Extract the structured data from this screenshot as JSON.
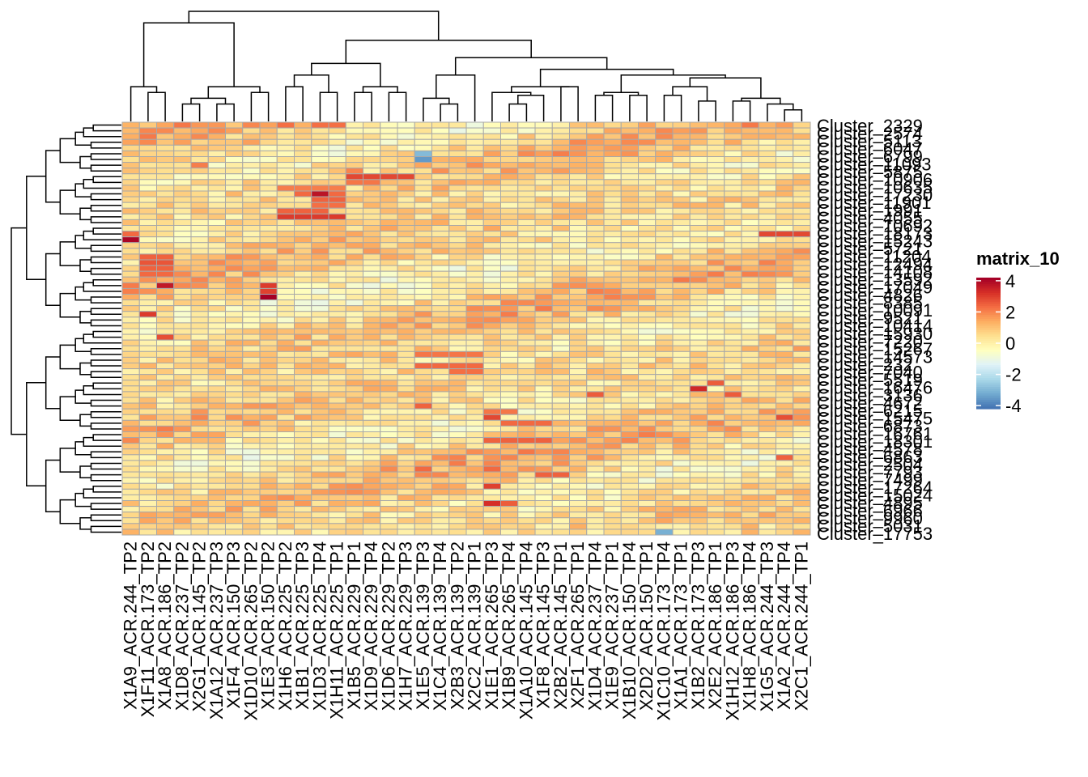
{
  "chart_data": {
    "type": "heatmap",
    "title": "",
    "legend": {
      "title": "matrix_10",
      "ticks": [
        4,
        2,
        0,
        -2,
        -4
      ],
      "range": [
        -4.2,
        4.2
      ],
      "colors": [
        "#4575b4",
        "#74add1",
        "#abd9e9",
        "#e0f3f8",
        "#ffffbf",
        "#fee090",
        "#fdae61",
        "#f46d43",
        "#d73027",
        "#a50026"
      ],
      "placement": "right"
    },
    "columns": [
      "X1A9_ACR.244_TP2",
      "X1F11_ACR.173_TP2",
      "X1A8_ACR.186_TP2",
      "X1D8_ACR.237_TP2",
      "X2G1_ACR.145_TP2",
      "X1A12_ACR.237_TP3",
      "X1F4_ACR.150_TP3",
      "X1D10_ACR.265_TP2",
      "X1E3_ACR.150_TP2",
      "X1H6_ACR.225_TP2",
      "X1B1_ACR.225_TP3",
      "X1D3_ACR.225_TP4",
      "X1H11_ACR.225_TP1",
      "X1B5_ACR.229_TP1",
      "X1D9_ACR.229_TP4",
      "X1D6_ACR.229_TP2",
      "X1H7_ACR.229_TP3",
      "X1E5_ACR.139_TP3",
      "X1C4_ACR.139_TP4",
      "X2B3_ACR.139_TP2",
      "X2C2_ACR.139_TP1",
      "X1E1_ACR.265_TP3",
      "X1B9_ACR.265_TP4",
      "X1A10_ACR.145_TP4",
      "X1F8_ACR.145_TP3",
      "X2B2_ACR.145_TP1",
      "X2F1_ACR.265_TP1",
      "X1D4_ACR.237_TP4",
      "X1E9_ACR.237_TP1",
      "X1B10_ACR.150_TP4",
      "X2D2_ACR.150_TP1",
      "X1C10_ACR.173_TP4",
      "X1A1_ACR.173_TP1",
      "X1B2_ACR.173_TP3",
      "X2E2_ACR.186_TP1",
      "X1H12_ACR.186_TP3",
      "X1H8_ACR.186_TP4",
      "X1G5_ACR.244_TP3",
      "X1A2_ACR.244_TP4",
      "X2C1_ACR.244_TP1"
    ],
    "rows": [
      "Cluster_2329",
      "Cluster_2574",
      "Cluster_5113",
      "Cluster_6047",
      "Cluster_6799",
      "Cluster_11093",
      "Cluster_5875",
      "Cluster_10960",
      "Cluster_10906",
      "Cluster_11036",
      "Cluster_10635",
      "Cluster_7429",
      "Cluster_17230",
      "Cluster_11901",
      "Cluster_1991",
      "Cluster_4055",
      "Cluster_10692",
      "Cluster_18173",
      "Cluster_15243",
      "Cluster_5721",
      "Cluster_11204",
      "Cluster_12494",
      "Cluster_14108",
      "Cluster_13592",
      "Cluster_17049",
      "Cluster_13280",
      "Cluster_4826",
      "Cluster_5949",
      "Cluster_8385",
      "Cluster_16338",
      "Cluster_10091",
      "Cluster_16170",
      "Cluster_9521",
      "Cluster_10414",
      "Cluster_11113",
      "Cluster_15930",
      "Cluster_15867",
      "Cluster_7220",
      "Cluster_15267",
      "Cluster_17367",
      "Cluster_14573",
      "Cluster_5685",
      "Cluster_232",
      "Cluster_7040",
      "Cluster_3830",
      "Cluster_5519",
      "Cluster_16476",
      "Cluster_3136",
      "Cluster_3557",
      "Cluster_4672",
      "Cluster_6215",
      "Cluster_7017",
      "Cluster_15475",
      "Cluster_6873",
      "Cluster_7616",
      "Cluster_3965",
      "Cluster_16761",
      "Cluster_18301",
      "Cluster_4578",
      "Cluster_6863",
      "Cluster_2504",
      "Cluster_7793",
      "Cluster_7499",
      "Cluster_4853",
      "Cluster_17264",
      "Cluster_15024",
      "Cluster_4895",
      "Cluster_4890",
      "Cluster_6966",
      "Cluster_9960",
      "Cluster_5031",
      "Cluster_17753"
    ],
    "row_labels_shown": [
      "Cluster_2329",
      "Cluster_2574",
      "Cluster_5113",
      "Cluster_6047",
      "Cluster_6799",
      "Cluster_11093",
      "Cluster_5875",
      "Cluster_10906",
      "Cluster_10635",
      "Cluster_17230",
      "Cluster_11901",
      "Cluster_1991",
      "Cluster_4055",
      "Cluster_10692",
      "Cluster_18173",
      "Cluster_15243",
      "Cluster_5721",
      "Cluster_11204",
      "Cluster_12494",
      "Cluster_14108",
      "Cluster_13592",
      "Cluster_17049",
      "Cluster_4826",
      "Cluster_8385",
      "Cluster_10091",
      "Cluster_9521",
      "Cluster_10414",
      "Cluster_15930",
      "Cluster_7220",
      "Cluster_15267",
      "Cluster_14573",
      "Cluster_232",
      "Cluster_7040",
      "Cluster_5519",
      "Cluster_16476",
      "Cluster_3136",
      "Cluster_4672",
      "Cluster_6215",
      "Cluster_15475",
      "Cluster_6873",
      "Cluster_16761",
      "Cluster_18301",
      "Cluster_4578",
      "Cluster_6863",
      "Cluster_2504",
      "Cluster_7793",
      "Cluster_7499",
      "Cluster_17264",
      "Cluster_15024",
      "Cluster_4895",
      "Cluster_6966",
      "Cluster_9960",
      "Cluster_5031",
      "Cluster_17753"
    ],
    "hotspots": [
      {
        "row": 0,
        "cols": [
          9,
          11,
          12
        ],
        "value": 2.3
      },
      {
        "row": 3,
        "cols": [
          3,
          7
        ],
        "value": 1.6
      },
      {
        "row": 5,
        "cols": [
          17
        ],
        "value": -3.0
      },
      {
        "row": 6,
        "cols": [
          17
        ],
        "value": -3.6
      },
      {
        "row": 7,
        "cols": [
          4
        ],
        "value": 2.1
      },
      {
        "row": 8,
        "cols": [
          13
        ],
        "value": 2.0
      },
      {
        "row": 9,
        "cols": [
          13,
          14,
          15,
          16
        ],
        "value": 2.9
      },
      {
        "row": 10,
        "cols": [
          13,
          14
        ],
        "value": 2.2
      },
      {
        "row": 11,
        "cols": [
          9,
          10,
          11,
          12
        ],
        "value": 2.1
      },
      {
        "row": 12,
        "cols": [
          11
        ],
        "value": 3.8
      },
      {
        "row": 12,
        "cols": [
          10,
          12
        ],
        "value": 2.4
      },
      {
        "row": 13,
        "cols": [
          11,
          12
        ],
        "value": 2.5
      },
      {
        "row": 14,
        "cols": [
          11,
          12
        ],
        "value": 2.3
      },
      {
        "row": 15,
        "cols": [
          9,
          10,
          11
        ],
        "value": 2.5
      },
      {
        "row": 16,
        "cols": [
          9,
          10,
          11,
          12
        ],
        "value": 3.1
      },
      {
        "row": 19,
        "cols": [
          0
        ],
        "value": 2.4
      },
      {
        "row": 19,
        "cols": [
          37,
          38,
          39
        ],
        "value": 2.9
      },
      {
        "row": 20,
        "cols": [
          0
        ],
        "value": 4.1
      },
      {
        "row": 23,
        "cols": [
          1,
          2
        ],
        "value": 2.5
      },
      {
        "row": 24,
        "cols": [
          1,
          2
        ],
        "value": 2.7
      },
      {
        "row": 25,
        "cols": [
          1,
          2
        ],
        "value": 2.5
      },
      {
        "row": 26,
        "cols": [
          1,
          2
        ],
        "value": 2.4
      },
      {
        "row": 28,
        "cols": [
          2
        ],
        "value": 3.7
      },
      {
        "row": 28,
        "cols": [
          8
        ],
        "value": 3.1
      },
      {
        "row": 29,
        "cols": [
          8
        ],
        "value": 3.0
      },
      {
        "row": 30,
        "cols": [
          8
        ],
        "value": 4.2
      },
      {
        "row": 33,
        "cols": [
          1
        ],
        "value": 3.1
      },
      {
        "row": 37,
        "cols": [
          2
        ],
        "value": 2.8
      },
      {
        "row": 40,
        "cols": [
          17,
          18,
          19,
          20
        ],
        "value": 2.2
      },
      {
        "row": 42,
        "cols": [
          17,
          18,
          19,
          20
        ],
        "value": 2.4
      },
      {
        "row": 43,
        "cols": [
          19,
          20
        ],
        "value": 2.3
      },
      {
        "row": 45,
        "cols": [
          34
        ],
        "value": 2.6
      },
      {
        "row": 46,
        "cols": [
          33
        ],
        "value": 3.4
      },
      {
        "row": 47,
        "cols": [
          27,
          35
        ],
        "value": 2.6
      },
      {
        "row": 49,
        "cols": [
          17
        ],
        "value": 2.5
      },
      {
        "row": 50,
        "cols": [
          21,
          22
        ],
        "value": 2.2
      },
      {
        "row": 51,
        "cols": [
          21
        ],
        "value": 2.9
      },
      {
        "row": 51,
        "cols": [
          38
        ],
        "value": 2.8
      },
      {
        "row": 52,
        "cols": [
          22,
          23,
          24
        ],
        "value": 2.4
      },
      {
        "row": 55,
        "cols": [
          21,
          22,
          23,
          24
        ],
        "value": 2.5
      },
      {
        "row": 58,
        "cols": [
          38
        ],
        "value": 2.5
      },
      {
        "row": 60,
        "cols": [
          17,
          21
        ],
        "value": 2.4
      },
      {
        "row": 61,
        "cols": [
          24,
          25
        ],
        "value": 2.5
      },
      {
        "row": 63,
        "cols": [
          21
        ],
        "value": 3.0
      },
      {
        "row": 66,
        "cols": [
          21
        ],
        "value": 3.3
      },
      {
        "row": 66,
        "cols": [
          22
        ],
        "value": 2.6
      },
      {
        "row": 71,
        "cols": [
          31
        ],
        "value": -3.2
      }
    ]
  }
}
